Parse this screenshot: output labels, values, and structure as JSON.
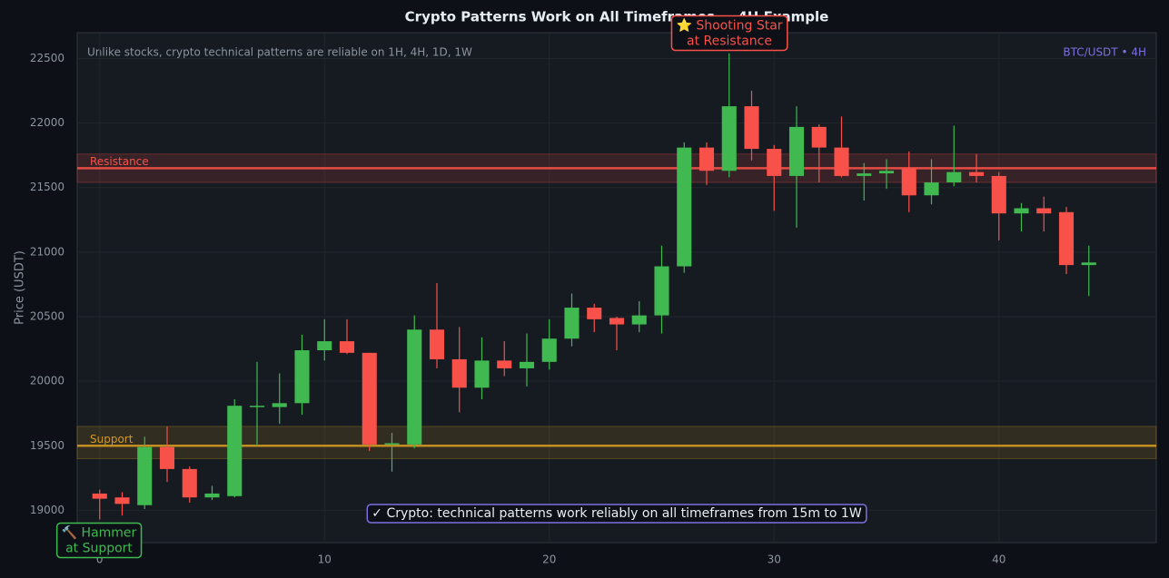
{
  "chart_data": {
    "type": "candlestick",
    "title": "Crypto Patterns Work on All Timeframes — 4H Example",
    "subtitle": "Unlike stocks, crypto technical patterns are reliable on 1H, 4H, 1D, 1W",
    "tag": "BTC/USDT • 4H",
    "y_label": "Price (USDT)",
    "x": [
      0,
      1,
      2,
      3,
      4,
      5,
      6,
      7,
      8,
      9,
      10,
      11,
      12,
      13,
      14,
      15,
      16,
      17,
      18,
      19,
      20,
      21,
      22,
      23,
      24,
      25,
      26,
      27,
      28,
      29,
      30,
      31,
      32,
      33,
      34,
      35,
      36,
      37,
      38,
      39,
      40,
      41,
      42,
      43,
      44
    ],
    "open": [
      19130,
      19100,
      19040,
      19490,
      19320,
      19100,
      19110,
      19800,
      19800,
      19830,
      20240,
      20310,
      20220,
      19520,
      19510,
      20400,
      20170,
      19950,
      20160,
      20100,
      20150,
      20330,
      20570,
      20490,
      20440,
      20510,
      20890,
      21810,
      21630,
      22130,
      21800,
      21590,
      21970,
      21810,
      21590,
      21610,
      21650,
      21440,
      21540,
      21620,
      21590,
      21300,
      21340,
      21310,
      20900
    ],
    "high": [
      19160,
      19140,
      19570,
      19650,
      19340,
      19190,
      19860,
      20150,
      20060,
      20360,
      20480,
      20480,
      20220,
      19600,
      20510,
      20760,
      20420,
      20340,
      20310,
      20370,
      20480,
      20680,
      20600,
      20500,
      20620,
      21050,
      21850,
      21850,
      22540,
      22250,
      21830,
      22130,
      21990,
      22050,
      21690,
      21720,
      21780,
      21720,
      21980,
      21760,
      21620,
      21380,
      21430,
      21350,
      21050
    ],
    "low": [
      18930,
      18960,
      19010,
      19220,
      19060,
      19080,
      19100,
      19500,
      19670,
      19740,
      20160,
      20210,
      19460,
      19300,
      19480,
      20100,
      19760,
      19860,
      20040,
      19960,
      20090,
      20270,
      20380,
      20240,
      20380,
      20370,
      20840,
      21520,
      21580,
      21710,
      21320,
      21190,
      21540,
      21580,
      21400,
      21490,
      21310,
      21370,
      21510,
      21540,
      21090,
      21160,
      21160,
      20830,
      20660
    ],
    "close": [
      19090,
      19050,
      19490,
      19320,
      19100,
      19130,
      19810,
      19810,
      19830,
      20240,
      20310,
      20220,
      19510,
      19520,
      20400,
      20170,
      19950,
      20160,
      20100,
      20150,
      20330,
      20570,
      20480,
      20440,
      20510,
      20890,
      21810,
      21630,
      22130,
      21800,
      21590,
      21970,
      21810,
      21590,
      21610,
      21630,
      21440,
      21540,
      21620,
      21590,
      21300,
      21340,
      21300,
      20900,
      20920
    ],
    "up_color": "#3fb950",
    "down_color": "#f85149",
    "levels": [
      {
        "label": "Resistance",
        "value": 21650,
        "band": [
          21540,
          21760
        ],
        "color": "#f85149"
      },
      {
        "label": "Support",
        "value": 19500,
        "band": [
          19400,
          19650
        ],
        "color": "#d29922"
      }
    ],
    "annotations": [
      {
        "lines": [
          "🔨 Hammer",
          "at Support"
        ],
        "color": "#3fb950"
      },
      {
        "lines": [
          "⭐ Shooting Star",
          "at Resistance"
        ],
        "color": "#f85149"
      }
    ],
    "note": "✓ Crypto: technical patterns work reliably on all timeframes from 15m to 1W",
    "xlim": [
      -1,
      47
    ],
    "ylim": [
      18750,
      22700
    ],
    "xticks": [
      0,
      10,
      20,
      30,
      40
    ],
    "yticks": [
      19000,
      19500,
      20000,
      20500,
      21000,
      21500,
      22000,
      22500
    ],
    "grid": true
  }
}
